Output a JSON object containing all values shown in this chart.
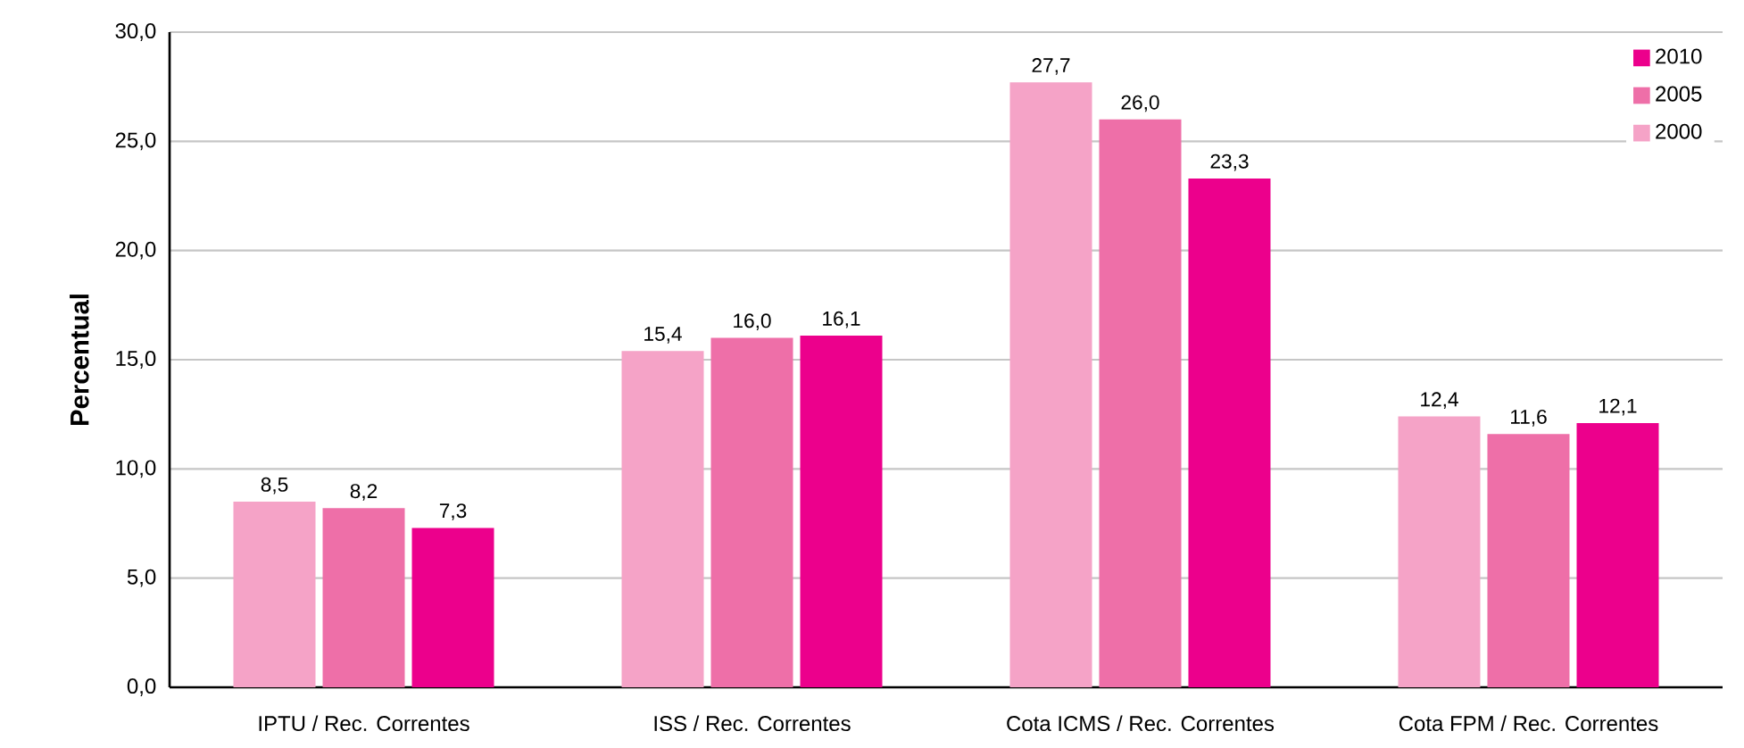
{
  "chart_data": {
    "type": "bar",
    "ylabel": "Percentual",
    "categories": [
      "IPTU / Rec. Correntes",
      "ISS / Rec. Correntes",
      "Cota ICMS / Rec. Correntes",
      "Cota FPM / Rec. Correntes"
    ],
    "series": [
      {
        "name": "2000",
        "color": "#f5a3c7",
        "values": [
          8.5,
          15.4,
          27.7,
          12.4
        ],
        "value_labels": [
          "8,5",
          "15,4",
          "27,7",
          "12,4"
        ]
      },
      {
        "name": "2005",
        "color": "#ee6fa8",
        "values": [
          8.2,
          16.0,
          26.0,
          11.6
        ],
        "value_labels": [
          "8,2",
          "16,0",
          "26,0",
          "11,6"
        ]
      },
      {
        "name": "2010",
        "color": "#ec008c",
        "values": [
          7.3,
          16.1,
          23.3,
          12.1
        ],
        "value_labels": [
          "7,3",
          "16,1",
          "23,3",
          "12,1"
        ]
      }
    ],
    "ylim": [
      0,
      30
    ],
    "yticks": [
      {
        "value": 0,
        "label": "0,0"
      },
      {
        "value": 5,
        "label": "5,0"
      },
      {
        "value": 10,
        "label": "10,0"
      },
      {
        "value": 15,
        "label": "15,0"
      },
      {
        "value": 20,
        "label": "20,0"
      },
      {
        "value": 25,
        "label": "25,0"
      },
      {
        "value": 30,
        "label": "30,0"
      }
    ],
    "grid": "y",
    "legend": "top right"
  }
}
